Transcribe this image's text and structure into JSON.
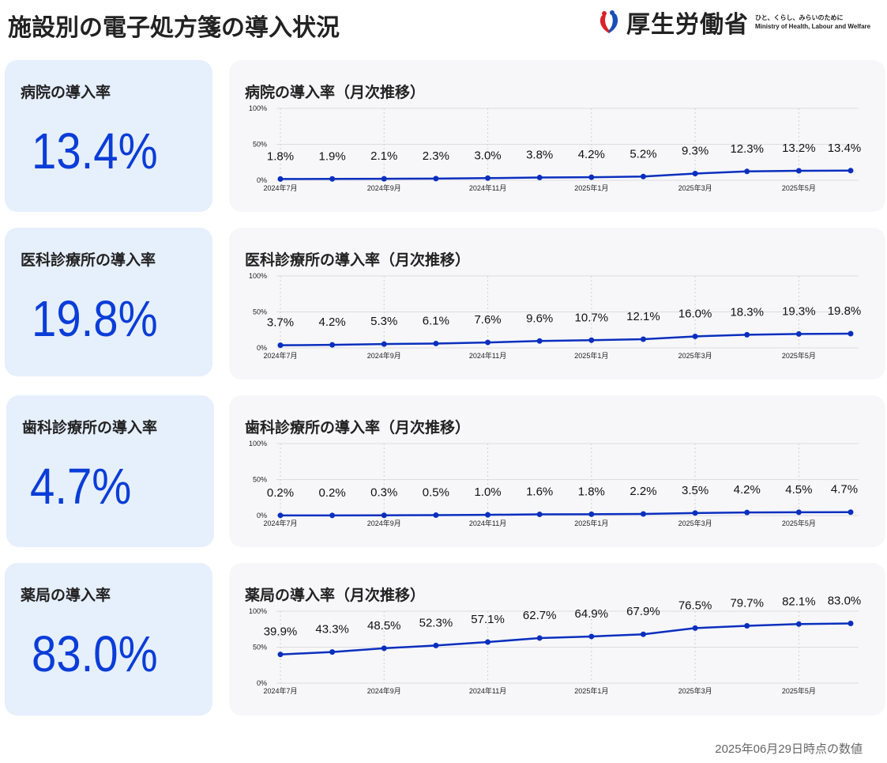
{
  "page_title": "施設別の電子処方箋の導入状況",
  "logo": {
    "name": "厚生労働省",
    "tagline": "ひと、くらし、みらいのために",
    "english": "Ministry of Health, Labour and Welfare"
  },
  "footer": "2025年06月29日時点の数値",
  "colors": {
    "line": "#0a2fbf",
    "value": "#0a3dd8",
    "card_bg": "#e6effc",
    "panel_bg": "#f7f7f9"
  },
  "cards": [
    {
      "title": "病院の導入率",
      "value": "13.4%"
    },
    {
      "title": "医科診療所の導入率",
      "value": "19.8%"
    },
    {
      "title": "歯科診療所の導入率",
      "value": "4.7%"
    },
    {
      "title": "薬局の導入率",
      "value": "83.0%"
    }
  ],
  "chart_data": [
    {
      "type": "line",
      "title": "病院の導入率（月次推移）",
      "x": [
        "2024-07",
        "2024-08",
        "2024-09",
        "2024-10",
        "2024-11",
        "2024-12",
        "2025-01",
        "2025-02",
        "2025-03",
        "2025-04",
        "2025-05",
        "2025-06"
      ],
      "values": [
        1.8,
        1.9,
        2.1,
        2.3,
        3.0,
        3.8,
        4.2,
        5.2,
        9.3,
        12.3,
        13.2,
        13.4
      ],
      "labels": [
        "1.8%",
        "1.9%",
        "2.1%",
        "2.3%",
        "3.0%",
        "3.8%",
        "4.2%",
        "5.2%",
        "9.3%",
        "12.3%",
        "13.2%",
        "13.4%"
      ],
      "ylim": [
        0,
        100
      ],
      "yticks": [
        "0%",
        "50%",
        "100%"
      ],
      "xticks": [
        "2024年7月",
        "2024年9月",
        "2024年11月",
        "2025年1月",
        "2025年3月",
        "2025年5月"
      ],
      "grid": true
    },
    {
      "type": "line",
      "title": "医科診療所の導入率（月次推移）",
      "x": [
        "2024-07",
        "2024-08",
        "2024-09",
        "2024-10",
        "2024-11",
        "2024-12",
        "2025-01",
        "2025-02",
        "2025-03",
        "2025-04",
        "2025-05",
        "2025-06"
      ],
      "values": [
        3.7,
        4.2,
        5.3,
        6.1,
        7.6,
        9.6,
        10.7,
        12.1,
        16.0,
        18.3,
        19.3,
        19.8
      ],
      "labels": [
        "3.7%",
        "4.2%",
        "5.3%",
        "6.1%",
        "7.6%",
        "9.6%",
        "10.7%",
        "12.1%",
        "16.0%",
        "18.3%",
        "19.3%",
        "19.8%"
      ],
      "ylim": [
        0,
        100
      ],
      "yticks": [
        "0%",
        "50%",
        "100%"
      ],
      "xticks": [
        "2024年7月",
        "2024年9月",
        "2024年11月",
        "2025年1月",
        "2025年3月",
        "2025年5月"
      ],
      "grid": true
    },
    {
      "type": "line",
      "title": "歯科診療所の導入率（月次推移）",
      "x": [
        "2024-07",
        "2024-08",
        "2024-09",
        "2024-10",
        "2024-11",
        "2024-12",
        "2025-01",
        "2025-02",
        "2025-03",
        "2025-04",
        "2025-05",
        "2025-06"
      ],
      "values": [
        0.2,
        0.2,
        0.3,
        0.5,
        1.0,
        1.6,
        1.8,
        2.2,
        3.5,
        4.2,
        4.5,
        4.7
      ],
      "labels": [
        "0.2%",
        "0.2%",
        "0.3%",
        "0.5%",
        "1.0%",
        "1.6%",
        "1.8%",
        "2.2%",
        "3.5%",
        "4.2%",
        "4.5%",
        "4.7%"
      ],
      "ylim": [
        0,
        100
      ],
      "yticks": [
        "0%",
        "50%",
        "100%"
      ],
      "xticks": [
        "2024年7月",
        "2024年9月",
        "2024年11月",
        "2025年1月",
        "2025年3月",
        "2025年5月"
      ],
      "grid": true
    },
    {
      "type": "line",
      "title": "薬局の導入率（月次推移）",
      "x": [
        "2024-07",
        "2024-08",
        "2024-09",
        "2024-10",
        "2024-11",
        "2024-12",
        "2025-01",
        "2025-02",
        "2025-03",
        "2025-04",
        "2025-05",
        "2025-06"
      ],
      "values": [
        39.9,
        43.3,
        48.5,
        52.3,
        57.1,
        62.7,
        64.9,
        67.9,
        76.5,
        79.7,
        82.1,
        83.0
      ],
      "labels": [
        "39.9%",
        "43.3%",
        "48.5%",
        "52.3%",
        "57.1%",
        "62.7%",
        "64.9%",
        "67.9%",
        "76.5%",
        "79.7%",
        "82.1%",
        "83.0%"
      ],
      "ylim": [
        0,
        100
      ],
      "yticks": [
        "0%",
        "50%",
        "100%"
      ],
      "xticks": [
        "2024年7月",
        "2024年9月",
        "2024年11月",
        "2025年1月",
        "2025年3月",
        "2025年5月"
      ],
      "grid": true
    }
  ]
}
